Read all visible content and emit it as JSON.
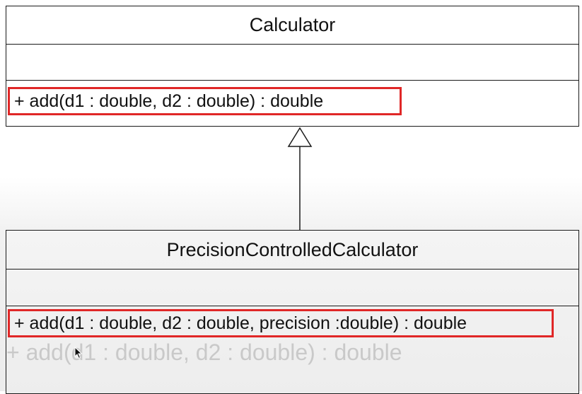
{
  "diagram": {
    "parent_class": {
      "name": "Calculator",
      "attributes": [],
      "operation": "+ add(d1 : double, d2 : double) : double"
    },
    "child_class": {
      "name": "PrecisionControlledCalculator",
      "attributes": [],
      "operation": "+ add(d1 : double, d2 : double, precision :double) : double",
      "faded_operation": "+ add(d1 : double, d2 : double) : double"
    },
    "relationship": {
      "type": "generalization",
      "from": "PrecisionControlledCalculator",
      "to": "Calculator"
    },
    "colors": {
      "highlight_border": "#e02727",
      "line": "#1a1a1a",
      "faded_text": "#c9c9c9"
    },
    "icons": {
      "arrow_head": "hollow-triangle-icon",
      "pointer": "mouse-cursor-icon"
    }
  }
}
